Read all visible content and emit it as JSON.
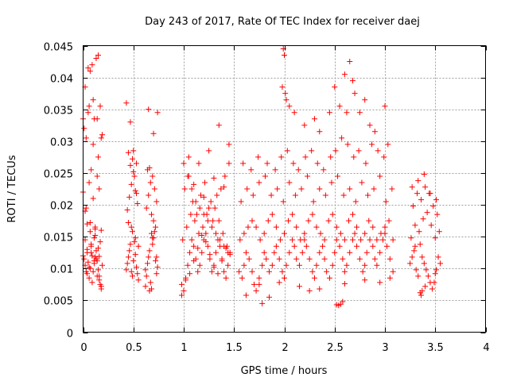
{
  "chart_data": {
    "type": "scatter",
    "title": "Day 243 of 2017, Rate Of TEC Index for receiver daej",
    "xlabel": "GPS time / hours",
    "ylabel": "ROTI / TECUs",
    "xlim": [
      0,
      4
    ],
    "ylim": [
      0,
      0.045
    ],
    "x_ticks": [
      "0",
      "0.5",
      "1",
      "1.5",
      "2",
      "2.5",
      "3",
      "3.5",
      "4"
    ],
    "y_ticks": [
      "0",
      "0.005",
      "0.01",
      "0.015",
      "0.02",
      "0.025",
      "0.03",
      "0.035",
      "0.04",
      "0.045"
    ],
    "grid": true,
    "marker": "plus",
    "color": "#ff0000",
    "series": [
      {
        "x": [
          0.0,
          0.01,
          0.02,
          0.03,
          0.04,
          0.05,
          0.06,
          0.07,
          0.08,
          0.09,
          0.1,
          0.11,
          0.12,
          0.13,
          0.14,
          0.15,
          0.16,
          0.17,
          0.18,
          0.19,
          0.0,
          0.02,
          0.04,
          0.06,
          0.08,
          0.1,
          0.12,
          0.14,
          0.16,
          0.18,
          0.01,
          0.03,
          0.05,
          0.07,
          0.09,
          0.11,
          0.13,
          0.15,
          0.17,
          0.19,
          0.02,
          0.06,
          0.1,
          0.14,
          0.18,
          0.03,
          0.07,
          0.11,
          0.15,
          0.04,
          0.08,
          0.12,
          0.16,
          0.0,
          0.05,
          0.1,
          0.15,
          0.02,
          0.07,
          0.12,
          0.17,
          0.04,
          0.09,
          0.14,
          0.06,
          0.11,
          0.16,
          0.08,
          0.13,
          0.18,
          0.43,
          0.44,
          0.45,
          0.46,
          0.47,
          0.48,
          0.49,
          0.5,
          0.51,
          0.52,
          0.53,
          0.54,
          0.55,
          0.44,
          0.46,
          0.48,
          0.5,
          0.52,
          0.54,
          0.45,
          0.47,
          0.49,
          0.51,
          0.53,
          0.43,
          0.47,
          0.5,
          0.53,
          0.45,
          0.49,
          0.52,
          0.55,
          0.48,
          0.62,
          0.63,
          0.64,
          0.65,
          0.66,
          0.67,
          0.68,
          0.69,
          0.7,
          0.71,
          0.72,
          0.73,
          0.74,
          0.63,
          0.65,
          0.67,
          0.69,
          0.71,
          0.73,
          0.64,
          0.66,
          0.68,
          0.7,
          0.72,
          0.62,
          0.66,
          0.7,
          0.74,
          0.65,
          0.69,
          0.73,
          0.68,
          0.98,
          1.0,
          1.02,
          1.04,
          1.06,
          1.08,
          1.1,
          1.12,
          1.14,
          1.16,
          1.18,
          1.2,
          1.22,
          1.24,
          1.26,
          1.28,
          1.3,
          1.32,
          1.34,
          1.36,
          1.38,
          1.4,
          1.42,
          1.44,
          1.46,
          0.99,
          1.03,
          1.07,
          1.11,
          1.15,
          1.19,
          1.23,
          1.27,
          1.31,
          1.35,
          1.39,
          1.43,
          1.01,
          1.05,
          1.09,
          1.13,
          1.17,
          1.21,
          1.25,
          1.29,
          1.33,
          1.37,
          1.41,
          1.45,
          1.0,
          1.04,
          1.08,
          1.12,
          1.16,
          1.2,
          1.24,
          1.28,
          1.32,
          1.36,
          1.4,
          1.44,
          0.98,
          1.02,
          1.06,
          1.1,
          1.14,
          1.18,
          1.22,
          1.26,
          1.3,
          1.34,
          1.38,
          1.42,
          1.46,
          1.05,
          1.15,
          1.25,
          1.35,
          1.45,
          1.1,
          1.2,
          1.3,
          1.4,
          1.55,
          1.58,
          1.6,
          1.62,
          1.65,
          1.68,
          1.7,
          1.72,
          1.75,
          1.78,
          1.8,
          1.82,
          1.85,
          1.88,
          1.9,
          1.92,
          1.95,
          1.98,
          2.0,
          2.02,
          2.05,
          2.08,
          2.1,
          2.12,
          2.15,
          2.18,
          2.2,
          2.22,
          2.25,
          2.28,
          2.3,
          2.32,
          2.35,
          2.38,
          2.4,
          2.42,
          2.45,
          2.48,
          2.5,
          2.52,
          2.55,
          2.58,
          2.6,
          2.62,
          2.65,
          2.68,
          2.7,
          2.72,
          2.75,
          2.78,
          2.8,
          2.82,
          2.85,
          2.88,
          2.9,
          2.92,
          2.95,
          2.98,
          3.0,
          3.02,
          3.05,
          3.08,
          1.56,
          1.6,
          1.64,
          1.68,
          1.72,
          1.76,
          1.8,
          1.84,
          1.88,
          1.92,
          1.96,
          2.0,
          2.04,
          2.08,
          2.12,
          2.16,
          2.2,
          2.24,
          2.28,
          2.32,
          2.36,
          2.4,
          2.44,
          2.48,
          2.52,
          2.56,
          2.6,
          2.64,
          2.68,
          2.72,
          2.76,
          2.8,
          2.84,
          2.88,
          2.92,
          2.96,
          3.0,
          3.04,
          3.08,
          1.57,
          1.63,
          1.69,
          1.75,
          1.81,
          1.87,
          1.93,
          1.99,
          2.05,
          2.11,
          2.17,
          2.23,
          2.29,
          2.35,
          2.41,
          2.47,
          2.53,
          2.59,
          2.65,
          2.71,
          2.77,
          2.83,
          2.89,
          2.95,
          3.01,
          3.07,
          1.59,
          1.67,
          1.74,
          1.83,
          1.91,
          1.97,
          2.03,
          2.09,
          2.14,
          2.21,
          2.27,
          2.33,
          2.39,
          2.46,
          2.51,
          2.57,
          2.63,
          2.69,
          2.74,
          2.81,
          2.87,
          2.93,
          2.99,
          3.03,
          1.98,
          1.99,
          2.0,
          2.01,
          2.02,
          2.05,
          2.1,
          2.2,
          2.3,
          2.35,
          2.45,
          2.5,
          2.55,
          2.6,
          2.62,
          2.65,
          2.68,
          2.7,
          2.75,
          2.8,
          2.85,
          2.9,
          3.0,
          1.62,
          1.78,
          1.85,
          2.25,
          2.52,
          2.54,
          2.56,
          2.58,
          1.75,
          1.95,
          2.15,
          2.35,
          2.6,
          2.8,
          2.95,
          3.05,
          3.25,
          3.27,
          3.29,
          3.31,
          3.33,
          3.35,
          3.37,
          3.39,
          3.41,
          3.43,
          3.45,
          3.47,
          3.49,
          3.51,
          3.53,
          3.55,
          3.26,
          3.3,
          3.34,
          3.38,
          3.42,
          3.46,
          3.5,
          3.54,
          3.28,
          3.32,
          3.36,
          3.4,
          3.44,
          3.48,
          3.52,
          3.27,
          3.33,
          3.39,
          3.45,
          3.51,
          3.35,
          3.36,
          3.37,
          3.4,
          3.3,
          3.5
        ],
        "y": [
          0.012,
          0.0115,
          0.0105,
          0.0095,
          0.013,
          0.011,
          0.0085,
          0.01,
          0.0125,
          0.012,
          0.0095,
          0.0108,
          0.0118,
          0.0128,
          0.0112,
          0.0098,
          0.0088,
          0.0075,
          0.0068,
          0.0105,
          0.022,
          0.019,
          0.017,
          0.0235,
          0.0255,
          0.021,
          0.0165,
          0.0245,
          0.0225,
          0.016,
          0.032,
          0.0305,
          0.0415,
          0.041,
          0.042,
          0.0335,
          0.043,
          0.0435,
          0.0355,
          0.031,
          0.0385,
          0.0355,
          0.0295,
          0.0335,
          0.0305,
          0.0195,
          0.0172,
          0.0148,
          0.0132,
          0.0125,
          0.0138,
          0.0152,
          0.0119,
          0.0335,
          0.0345,
          0.0365,
          0.0275,
          0.0145,
          0.0158,
          0.0162,
          0.0142,
          0.0092,
          0.0078,
          0.0088,
          0.0102,
          0.0112,
          0.0082,
          0.0135,
          0.0115,
          0.0072,
          0.0098,
          0.0108,
          0.0118,
          0.0128,
          0.0138,
          0.0095,
          0.0088,
          0.0112,
          0.0142,
          0.0122,
          0.0102,
          0.0092,
          0.0082,
          0.0192,
          0.0212,
          0.0232,
          0.0252,
          0.0222,
          0.0202,
          0.0282,
          0.0262,
          0.0272,
          0.0245,
          0.0218,
          0.036,
          0.033,
          0.0285,
          0.0265,
          0.0172,
          0.0158,
          0.0148,
          0.0135,
          0.0165,
          0.0098,
          0.0088,
          0.0108,
          0.0118,
          0.0128,
          0.0078,
          0.0068,
          0.0138,
          0.0148,
          0.0158,
          0.0112,
          0.0092,
          0.0102,
          0.0195,
          0.0215,
          0.0235,
          0.0245,
          0.0225,
          0.0205,
          0.0255,
          0.0258,
          0.0185,
          0.0175,
          0.0165,
          0.0072,
          0.0065,
          0.0312,
          0.0345,
          0.035,
          0.0148,
          0.0118,
          0.0155,
          0.0058,
          0.0065,
          0.0085,
          0.0105,
          0.0125,
          0.0145,
          0.0135,
          0.0115,
          0.0095,
          0.0105,
          0.0125,
          0.0145,
          0.0155,
          0.0135,
          0.0115,
          0.0095,
          0.0105,
          0.0125,
          0.0145,
          0.0135,
          0.0115,
          0.0095,
          0.0085,
          0.0105,
          0.0125,
          0.0145,
          0.0165,
          0.0185,
          0.0175,
          0.0155,
          0.0165,
          0.0185,
          0.0205,
          0.0195,
          0.0175,
          0.0155,
          0.0135,
          0.0225,
          0.0245,
          0.0205,
          0.0185,
          0.0215,
          0.0235,
          0.0195,
          0.0175,
          0.0215,
          0.0225,
          0.0245,
          0.0265,
          0.0265,
          0.0245,
          0.0225,
          0.0205,
          0.0195,
          0.0185,
          0.0175,
          0.0165,
          0.0155,
          0.0145,
          0.0135,
          0.0125,
          0.0075,
          0.0082,
          0.0092,
          0.0112,
          0.0132,
          0.0152,
          0.0142,
          0.0122,
          0.0102,
          0.0092,
          0.0112,
          0.0132,
          0.0122,
          0.0275,
          0.0265,
          0.0285,
          0.0325,
          0.0295,
          0.0232,
          0.0212,
          0.0242,
          0.0228,
          0.0095,
          0.0085,
          0.0105,
          0.0125,
          0.0115,
          0.0095,
          0.0075,
          0.0065,
          0.0085,
          0.0105,
          0.0125,
          0.0115,
          0.0095,
          0.0105,
          0.0125,
          0.0135,
          0.0115,
          0.0095,
          0.0085,
          0.0105,
          0.0125,
          0.0145,
          0.0135,
          0.0115,
          0.0105,
          0.0125,
          0.0145,
          0.0135,
          0.0115,
          0.0095,
          0.0085,
          0.0105,
          0.0125,
          0.0135,
          0.0115,
          0.0095,
          0.0085,
          0.0105,
          0.0125,
          0.0145,
          0.0135,
          0.0115,
          0.0095,
          0.0105,
          0.0125,
          0.0145,
          0.0155,
          0.0135,
          0.0115,
          0.0095,
          0.0105,
          0.0125,
          0.0145,
          0.0135,
          0.0115,
          0.0105,
          0.0125,
          0.0145,
          0.0155,
          0.0135,
          0.0115,
          0.0095,
          0.0145,
          0.0155,
          0.0165,
          0.0175,
          0.0165,
          0.0145,
          0.0155,
          0.0175,
          0.0185,
          0.0165,
          0.0145,
          0.0155,
          0.0175,
          0.0185,
          0.0165,
          0.0145,
          0.0155,
          0.0175,
          0.0185,
          0.0165,
          0.0155,
          0.0145,
          0.0175,
          0.0185,
          0.0165,
          0.0155,
          0.0145,
          0.0175,
          0.0185,
          0.0165,
          0.0145,
          0.0155,
          0.0175,
          0.0165,
          0.0145,
          0.0155,
          0.0165,
          0.0175,
          0.0145,
          0.0205,
          0.0225,
          0.0215,
          0.0235,
          0.0245,
          0.0215,
          0.0225,
          0.0205,
          0.0235,
          0.0215,
          0.0225,
          0.0245,
          0.0205,
          0.0225,
          0.0215,
          0.0235,
          0.0245,
          0.0215,
          0.0225,
          0.0205,
          0.0235,
          0.0215,
          0.0225,
          0.0245,
          0.0205,
          0.0225,
          0.0265,
          0.0255,
          0.0275,
          0.0265,
          0.0255,
          0.0275,
          0.0285,
          0.0265,
          0.0255,
          0.0275,
          0.0285,
          0.0265,
          0.0255,
          0.0275,
          0.0285,
          0.0305,
          0.0295,
          0.0275,
          0.0285,
          0.0265,
          0.0295,
          0.0285,
          0.0275,
          0.0295,
          0.0385,
          0.0445,
          0.0435,
          0.0375,
          0.0365,
          0.0355,
          0.0345,
          0.0325,
          0.0335,
          0.0315,
          0.0345,
          0.0385,
          0.0355,
          0.0405,
          0.0345,
          0.0425,
          0.0395,
          0.0375,
          0.0345,
          0.0365,
          0.0325,
          0.0315,
          0.0355,
          0.0058,
          0.0045,
          0.0055,
          0.0065,
          0.0043,
          0.0042,
          0.0044,
          0.0048,
          0.0075,
          0.0078,
          0.0072,
          0.0068,
          0.0076,
          0.0082,
          0.0078,
          0.0085,
          0.0108,
          0.0118,
          0.0128,
          0.0098,
          0.0088,
          0.0138,
          0.0118,
          0.0108,
          0.0098,
          0.0088,
          0.0078,
          0.0068,
          0.0078,
          0.0098,
          0.0118,
          0.0108,
          0.0148,
          0.0168,
          0.0158,
          0.0178,
          0.0188,
          0.0168,
          0.0148,
          0.0158,
          0.0198,
          0.0218,
          0.0208,
          0.0228,
          0.0218,
          0.0198,
          0.0185,
          0.0228,
          0.0238,
          0.0248,
          0.0218,
          0.0208,
          0.0062,
          0.0058,
          0.0065,
          0.0072,
          0.0135,
          0.0092
        ]
      }
    ]
  }
}
